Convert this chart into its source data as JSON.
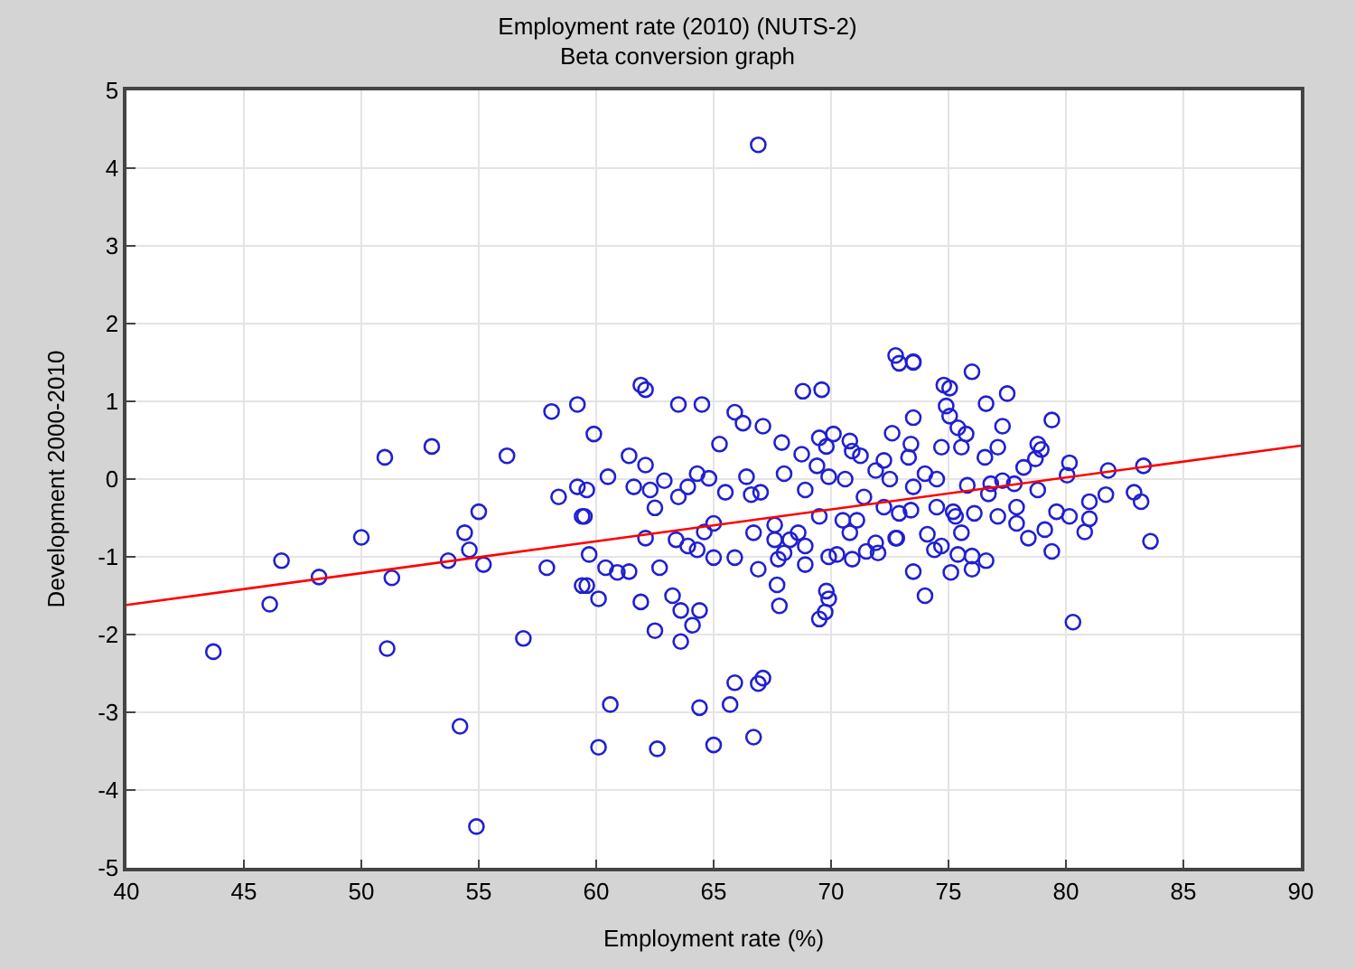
{
  "chart_data": {
    "type": "scatter",
    "title": "Employment rate (2010) (NUTS-2)",
    "subtitle": "Beta conversion graph",
    "xlabel": "Employment rate (%)",
    "ylabel": "Development 2000-2010",
    "xlim": [
      40,
      90
    ],
    "xticks": [
      40,
      45,
      50,
      55,
      60,
      65,
      70,
      75,
      80,
      85,
      90
    ],
    "ylim": [
      -5,
      5
    ],
    "yticks": [
      -5,
      -4,
      -3,
      -2,
      -1,
      0,
      1,
      2,
      3,
      4,
      5
    ],
    "grid": true,
    "marker": "circle",
    "series": [
      {
        "color": "#2020d0",
        "x": [
          43.7,
          46.1,
          46.6,
          48.2,
          50,
          51,
          51.1,
          51.3,
          53,
          53.7,
          54.2,
          54.4,
          54.6,
          55,
          54.9,
          55.2,
          56.2,
          56.9,
          57.9,
          58.1,
          58.4,
          59.4,
          59.4,
          59.2,
          59.9,
          59.2,
          59.6,
          59.5,
          59.7,
          59.6,
          60.1,
          60.4,
          60.9,
          60.5,
          60.6,
          60.1,
          61.4,
          61.4,
          61.6,
          61.9,
          61.9,
          62.1,
          62.1,
          62.1,
          62.3,
          62.5,
          62.5,
          62.6,
          62.7,
          62.9,
          63.25,
          63.4,
          63.5,
          63.5,
          63.6,
          63.6,
          63.9,
          63.9,
          64.1,
          64.3,
          64.3,
          64.4,
          64.4,
          64.5,
          64.6,
          64.8,
          65,
          65,
          65,
          65.25,
          65.5,
          65.7,
          65.9,
          65.9,
          65.9,
          66.25,
          66.4,
          66.6,
          66.7,
          66.7,
          66.9,
          66.9,
          66.9,
          67,
          67.1,
          67.1,
          67.6,
          67.6,
          67.7,
          67.75,
          67.8,
          67.9,
          68,
          68,
          68.25,
          68.6,
          68.75,
          68.8,
          68.9,
          68.9,
          68.9,
          69.4,
          69.5,
          69.5,
          69.5,
          69.6,
          69.75,
          69.8,
          69.8,
          69.9,
          69.9,
          69.9,
          70.1,
          70.25,
          70.5,
          70.6,
          70.8,
          70.8,
          70.9,
          70.9,
          71.1,
          71.25,
          71.4,
          71.5,
          71.9,
          71.9,
          72,
          72.25,
          72.25,
          72.5,
          72.6,
          72.75,
          72.75,
          72.8,
          72.9,
          72.9,
          73.3,
          73.4,
          73.4,
          73.5,
          73.5,
          73.5,
          73.5,
          73.5,
          74,
          74,
          74.1,
          74.4,
          74.5,
          74.5,
          74.7,
          74.7,
          74.8,
          74.9,
          75.05,
          75.05,
          75.1,
          75.2,
          75.3,
          75.4,
          75.4,
          75.55,
          75.55,
          75.75,
          75.8,
          76,
          76,
          76,
          76.1,
          76.55,
          76.6,
          76.6,
          76.7,
          76.8,
          77.1,
          77.1,
          77.3,
          77.3,
          77.5,
          77.8,
          77.9,
          77.9,
          78.2,
          78.4,
          78.7,
          78.8,
          78.8,
          78.95,
          79.1,
          79.4,
          79.4,
          79.6,
          80.05,
          80.15,
          80.15,
          80.3,
          80.8,
          81,
          81,
          81.7,
          81.8,
          82.9,
          83.2,
          83.3,
          83.6
        ],
        "values": [
          -2.22,
          -1.61,
          -1.05,
          -1.26,
          -0.75,
          0.28,
          -2.18,
          -1.27,
          0.42,
          -1.05,
          -3.18,
          -0.69,
          -0.91,
          -0.42,
          -4.47,
          -1.1,
          0.3,
          -2.05,
          -1.14,
          0.87,
          -0.23,
          -0.48,
          -1.37,
          0.96,
          0.58,
          -0.1,
          -0.14,
          -0.48,
          -0.97,
          -1.37,
          -1.54,
          -1.14,
          -1.2,
          0.03,
          -2.9,
          -3.45,
          0.3,
          -1.19,
          -0.1,
          1.21,
          -1.58,
          0.18,
          -0.76,
          1.15,
          -0.14,
          -0.37,
          -1.95,
          -3.47,
          -1.14,
          -0.02,
          -1.5,
          -0.78,
          0.96,
          -0.23,
          -1.69,
          -2.09,
          -0.1,
          -0.86,
          -1.88,
          0.07,
          -0.91,
          -1.69,
          -2.94,
          0.96,
          -0.68,
          0.01,
          -1.01,
          -0.57,
          -3.42,
          0.45,
          -0.17,
          -2.9,
          0.86,
          -1.01,
          -2.62,
          0.72,
          0.03,
          -0.2,
          -0.69,
          -3.32,
          4.3,
          -1.16,
          -2.63,
          -0.17,
          0.68,
          -2.56,
          -0.59,
          -0.78,
          -1.36,
          -1.03,
          -1.63,
          0.47,
          0.07,
          -0.95,
          -0.78,
          -0.69,
          0.32,
          1.13,
          -0.14,
          -1.1,
          -0.86,
          0.17,
          0.53,
          -0.48,
          -1.8,
          1.15,
          -1.71,
          0.42,
          -1.44,
          0.03,
          -1.54,
          -1,
          0.58,
          -0.97,
          -0.53,
          0,
          0.49,
          -0.69,
          0.36,
          -1.03,
          -0.53,
          0.3,
          -0.23,
          -0.93,
          0.11,
          -0.82,
          -0.95,
          0.24,
          -0.36,
          0,
          0.59,
          1.59,
          -0.76,
          -0.76,
          1.49,
          -0.44,
          0.28,
          0.45,
          -0.4,
          1.5,
          0.79,
          -1.19,
          -0.1,
          1.51,
          0.07,
          -1.5,
          -0.71,
          -0.91,
          0,
          -0.36,
          0.41,
          -0.86,
          1.21,
          0.94,
          0.81,
          1.17,
          -1.2,
          -0.42,
          -0.48,
          0.66,
          -0.97,
          0.41,
          -0.69,
          0.58,
          -0.08,
          1.38,
          -0.99,
          -1.16,
          -0.44,
          0.28,
          0.97,
          -1.05,
          -0.19,
          -0.06,
          0.41,
          -0.48,
          0.68,
          -0.02,
          1.1,
          -0.06,
          -0.36,
          -0.57,
          0.15,
          -0.76,
          0.26,
          0.45,
          -0.14,
          0.38,
          -0.65,
          0.76,
          -0.93,
          -0.42,
          0.05,
          0.21,
          -0.48,
          -1.84,
          -0.68,
          -0.29,
          -0.51,
          -0.2,
          0.11,
          -0.17,
          -0.29,
          0.17,
          -0.8
        ]
      },
      {
        "type": "line",
        "color": "#ff0000",
        "marker": "none",
        "line_style": "solid",
        "x": [
          40,
          90
        ],
        "values": [
          -1.62,
          0.43
        ]
      }
    ]
  }
}
